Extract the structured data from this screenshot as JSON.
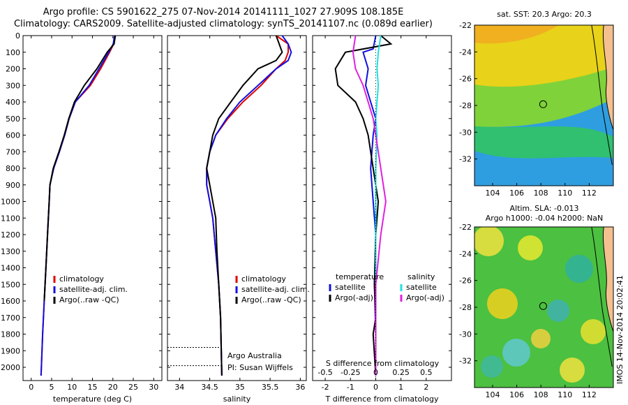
{
  "title_line1": "Argo profile: CS 5901622_275 07-Nov-2014 20141111_1027 27.909S 108.185E",
  "title_line2": "Climatology: CARS2009. Satellite-adjusted climatology: synTS_20141107.nc (0.089d earlier)",
  "colors": {
    "climatology": "#e00000",
    "satellite": "#1010e0",
    "argo": "#000000",
    "sal_satellite": "#20e0e0",
    "sal_argo": "#e020e0"
  },
  "depth_axis": {
    "ticks": [
      0,
      100,
      200,
      300,
      400,
      500,
      600,
      700,
      800,
      900,
      1000,
      1100,
      1200,
      1300,
      1400,
      1500,
      1600,
      1700,
      1800,
      1900,
      2000
    ],
    "lim": [
      0,
      2080
    ]
  },
  "side_text": "IMOS 14-Nov-2014 20:02:41",
  "argo_credit": {
    "line1": "Argo Australia",
    "line2": "PI: Susan Wijffels"
  },
  "chart_data": [
    {
      "type": "line",
      "name": "temperature",
      "xlabel": "temperature (deg C)",
      "xlim": [
        -2,
        32
      ],
      "xticks": [
        0,
        5,
        10,
        15,
        20,
        25,
        30
      ],
      "legend": [
        "climatology",
        "satellite-adj. clim.",
        "Argo(..raw -QC)"
      ],
      "series": [
        {
          "name": "climatology",
          "color": "#e00000",
          "points": [
            [
              20.4,
              0
            ],
            [
              20.2,
              50
            ],
            [
              19.2,
              100
            ],
            [
              17,
              200
            ],
            [
              14.5,
              300
            ],
            [
              10.8,
              400
            ],
            [
              9.3,
              500
            ],
            [
              8.2,
              600
            ],
            [
              6.9,
              700
            ],
            [
              5.5,
              800
            ],
            [
              4.6,
              900
            ],
            [
              4.4,
              1000
            ],
            [
              4,
              1200
            ],
            [
              3.6,
              1400
            ],
            [
              3.2,
              1600
            ],
            [
              2.8,
              1800
            ],
            [
              2.5,
              2000
            ],
            [
              2.4,
              2050
            ]
          ]
        },
        {
          "name": "satellite-adj. clim.",
          "color": "#1010e0",
          "points": [
            [
              20.4,
              0
            ],
            [
              20.1,
              50
            ],
            [
              19,
              100
            ],
            [
              16.6,
              200
            ],
            [
              14.2,
              300
            ],
            [
              10.8,
              400
            ],
            [
              9.3,
              500
            ],
            [
              8.2,
              600
            ],
            [
              6.9,
              700
            ],
            [
              5.5,
              800
            ],
            [
              4.6,
              900
            ],
            [
              4.4,
              1000
            ],
            [
              4,
              1200
            ],
            [
              3.6,
              1400
            ],
            [
              3.2,
              1600
            ],
            [
              2.8,
              1800
            ],
            [
              2.5,
              2000
            ],
            [
              2.4,
              2050
            ]
          ]
        },
        {
          "name": "Argo(..raw -QC)",
          "color": "#000000",
          "points": [
            [
              20.6,
              0
            ],
            [
              20.3,
              50
            ],
            [
              18.6,
              100
            ],
            [
              16.1,
              200
            ],
            [
              13,
              300
            ],
            [
              10.6,
              400
            ],
            [
              9.2,
              500
            ],
            [
              8.1,
              600
            ],
            [
              6.8,
              700
            ],
            [
              5.4,
              800
            ],
            [
              4.6,
              900
            ],
            [
              4.4,
              1000
            ],
            [
              4,
              1200
            ],
            [
              3.6,
              1400
            ],
            [
              3.2,
              1600
            ]
          ]
        }
      ]
    },
    {
      "type": "line",
      "name": "salinity",
      "xlabel": "salinity",
      "xlim": [
        33.8,
        36.1
      ],
      "xticks": [
        34,
        34.5,
        35,
        35.5,
        36
      ],
      "legend": [
        "climatology",
        "satellite-adj. clim.",
        "Argo(..raw -QC)"
      ],
      "series": [
        {
          "name": "climatology",
          "color": "#e00000",
          "points": [
            [
              35.6,
              0
            ],
            [
              35.8,
              50
            ],
            [
              35.8,
              100
            ],
            [
              35.75,
              150
            ],
            [
              35.6,
              200
            ],
            [
              35.35,
              300
            ],
            [
              35.05,
              400
            ],
            [
              34.8,
              500
            ],
            [
              34.6,
              600
            ],
            [
              34.5,
              700
            ],
            [
              34.45,
              800
            ],
            [
              34.45,
              900
            ],
            [
              34.5,
              1000
            ],
            [
              34.55,
              1100
            ],
            [
              34.6,
              1300
            ],
            [
              34.65,
              1500
            ],
            [
              34.68,
              1700
            ],
            [
              34.7,
              2050
            ]
          ]
        },
        {
          "name": "satellite-adj. clim.",
          "color": "#1010e0",
          "points": [
            [
              35.7,
              0
            ],
            [
              35.8,
              50
            ],
            [
              35.85,
              100
            ],
            [
              35.8,
              150
            ],
            [
              35.6,
              200
            ],
            [
              35.3,
              300
            ],
            [
              35,
              400
            ],
            [
              34.78,
              500
            ],
            [
              34.6,
              600
            ],
            [
              34.5,
              700
            ],
            [
              34.45,
              800
            ],
            [
              34.45,
              900
            ],
            [
              34.5,
              1000
            ],
            [
              34.55,
              1100
            ],
            [
              34.6,
              1300
            ],
            [
              34.65,
              1500
            ],
            [
              34.68,
              1700
            ],
            [
              34.7,
              2050
            ]
          ]
        },
        {
          "name": "Argo(..raw -QC)",
          "color": "#000000",
          "points": [
            [
              35.6,
              0
            ],
            [
              35.65,
              50
            ],
            [
              35.7,
              100
            ],
            [
              35.6,
              150
            ],
            [
              35.3,
              200
            ],
            [
              35.05,
              300
            ],
            [
              34.85,
              400
            ],
            [
              34.65,
              500
            ],
            [
              34.55,
              600
            ],
            [
              34.5,
              700
            ],
            [
              34.45,
              800
            ],
            [
              34.5,
              900
            ],
            [
              34.55,
              1000
            ],
            [
              34.6,
              1100
            ],
            [
              34.62,
              1300
            ],
            [
              34.65,
              1500
            ],
            [
              34.68,
              1700
            ],
            [
              34.7,
              2050
            ]
          ]
        }
      ],
      "dotted_lines": [
        1880,
        1990
      ]
    },
    {
      "type": "line",
      "name": "difference",
      "xlabel": "T difference from climatology",
      "xlabel_top": "S difference from climatology",
      "xlim": [
        -2.5,
        3
      ],
      "xticks_bottom": [
        -2,
        -1,
        0,
        1,
        2
      ],
      "xticks_top": {
        "labels": [
          "-0.5",
          "-0.25",
          "0",
          "0.25",
          "0.5"
        ],
        "positions": [
          -2,
          -1,
          0,
          1,
          2
        ]
      },
      "legend_left": {
        "title": "temperature",
        "items": [
          "satellite",
          "Argo(-adj)"
        ]
      },
      "legend_right": {
        "title": "salinity",
        "items": [
          "satellite",
          "Argo(-adj)"
        ]
      },
      "series": [
        {
          "name": "temperature satellite",
          "color": "#1010e0",
          "points": [
            [
              0,
              0
            ],
            [
              -0.1,
              80
            ],
            [
              -0.5,
              100
            ],
            [
              -0.3,
              200
            ],
            [
              -0.4,
              300
            ],
            [
              -0.2,
              400
            ],
            [
              0,
              500
            ],
            [
              -0.1,
              600
            ],
            [
              -0.2,
              800
            ],
            [
              -0.1,
              1000
            ],
            [
              0,
              1200
            ],
            [
              -0.05,
              1500
            ],
            [
              0,
              1800
            ],
            [
              0,
              2050
            ]
          ]
        },
        {
          "name": "temperature Argo(-adj)",
          "color": "#000000",
          "points": [
            [
              0.2,
              0
            ],
            [
              0.6,
              50
            ],
            [
              -1.2,
              100
            ],
            [
              -1.6,
              200
            ],
            [
              -1.5,
              300
            ],
            [
              -0.8,
              400
            ],
            [
              -0.5,
              500
            ],
            [
              -0.3,
              600
            ],
            [
              -0.1,
              800
            ],
            [
              0.1,
              1000
            ],
            [
              0,
              1200
            ],
            [
              -0.05,
              1500
            ],
            [
              0,
              1700
            ],
            [
              -0.1,
              1800
            ],
            [
              0,
              2050
            ]
          ]
        },
        {
          "name": "salinity satellite",
          "color": "#20e0e0",
          "points": [
            [
              0.2,
              0
            ],
            [
              0.1,
              100
            ],
            [
              0.05,
              200
            ],
            [
              0.1,
              300
            ],
            [
              0.05,
              400
            ],
            [
              0,
              500
            ],
            [
              0.05,
              600
            ],
            [
              0,
              800
            ],
            [
              0,
              1000
            ],
            [
              0,
              1200
            ],
            [
              0,
              1500
            ],
            [
              0,
              1800
            ],
            [
              0,
              2050
            ]
          ]
        },
        {
          "name": "salinity Argo(-adj)",
          "color": "#e020e0",
          "points": [
            [
              -0.8,
              0
            ],
            [
              -0.9,
              100
            ],
            [
              -0.8,
              200
            ],
            [
              -0.5,
              300
            ],
            [
              -0.3,
              400
            ],
            [
              -0.1,
              500
            ],
            [
              0,
              600
            ],
            [
              0.2,
              800
            ],
            [
              0.4,
              1000
            ],
            [
              0.2,
              1200
            ],
            [
              0,
              1500
            ],
            [
              0,
              2050
            ]
          ]
        }
      ]
    },
    {
      "type": "heatmap",
      "name": "sst_map",
      "title": "sat. SST: 20.3 Argo: 20.3",
      "xticks": [
        104,
        106,
        108,
        110,
        112
      ],
      "yticks": [
        -22,
        -24,
        -26,
        -28,
        -30,
        -32
      ],
      "xlim": [
        102.5,
        114
      ],
      "ylim": [
        -34,
        -22
      ],
      "argo_position": [
        108.185,
        -27.909
      ]
    },
    {
      "type": "heatmap",
      "name": "sla_map",
      "title_line1": "Altim. SLA: -0.013",
      "title_line2": "Argo h1000: -0.04 h2000: NaN",
      "xticks": [
        104,
        106,
        108,
        110,
        112
      ],
      "yticks": [
        -22,
        -24,
        -26,
        -28,
        -30,
        -32
      ],
      "xlim": [
        102.5,
        114
      ],
      "ylim": [
        -34,
        -22
      ],
      "argo_position": [
        108.185,
        -27.909
      ]
    }
  ]
}
